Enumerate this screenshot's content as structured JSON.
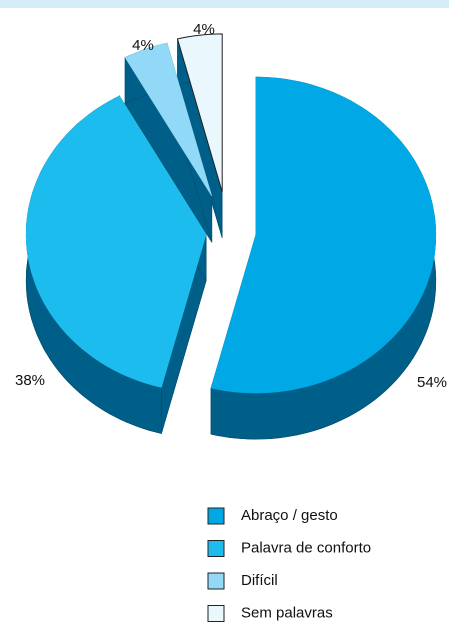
{
  "chart_data": {
    "type": "pie",
    "categories": [
      "Abraço / gesto",
      "Palavra de conforto",
      "Difícil",
      "Sem palavras"
    ],
    "values": [
      54,
      38,
      4,
      4
    ],
    "value_labels": [
      "54%",
      "38%",
      "4%",
      "4%"
    ],
    "colors": [
      "#00a9e6",
      "#1cbdee",
      "#91d9f6",
      "#eaf7fd"
    ],
    "legend": "bottom"
  }
}
